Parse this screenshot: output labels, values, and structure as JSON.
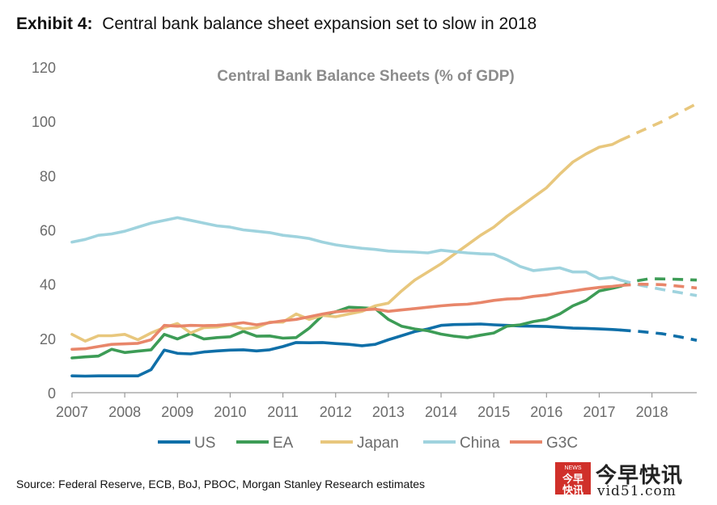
{
  "header": {
    "exhibit_label": "Exhibit 4:",
    "exhibit_title": "Central bank balance sheet expansion set to slow in 2018"
  },
  "footer": {
    "source": "Source: Federal Reserve, ECB, BoJ, PBOC, Morgan Stanley Research estimates"
  },
  "watermark": {
    "badge_top": "NEWS",
    "badge_line1": "今早",
    "badge_line2": "快讯",
    "chinese": "今早快讯",
    "url": "vid51.com"
  },
  "chart_data": {
    "type": "line",
    "title": "Central Bank Balance Sheets  (% of GDP)",
    "xlabel": "",
    "ylabel": "",
    "xlim": [
      2007,
      2018.85
    ],
    "ylim": [
      0,
      120
    ],
    "x_ticks": [
      2007,
      2008,
      2009,
      2010,
      2011,
      2012,
      2013,
      2014,
      2015,
      2016,
      2017,
      2018
    ],
    "x_tick_labels": [
      "2007",
      "2008",
      "2009",
      "2010",
      "2011",
      "2012",
      "2013",
      "2014",
      "2015",
      "2016",
      "2017",
      "2018"
    ],
    "y_ticks": [
      0,
      20,
      40,
      60,
      80,
      100,
      120
    ],
    "y_tick_labels": [
      "0",
      "20",
      "40",
      "60",
      "80",
      "100",
      "120"
    ],
    "grid": false,
    "legend_position": "bottom",
    "forecast_start": 2017.4,
    "series": [
      {
        "name": "US",
        "color": "#0f6fa8",
        "x": [
          2007,
          2007.25,
          2007.5,
          2007.75,
          2008,
          2008.25,
          2008.5,
          2008.75,
          2009,
          2009.25,
          2009.5,
          2009.75,
          2010,
          2010.25,
          2010.5,
          2010.75,
          2011,
          2011.25,
          2011.5,
          2011.75,
          2012,
          2012.25,
          2012.5,
          2012.75,
          2013,
          2013.25,
          2013.5,
          2013.75,
          2014,
          2014.25,
          2014.5,
          2014.75,
          2015,
          2015.25,
          2015.5,
          2015.75,
          2016,
          2016.25,
          2016.5,
          2016.75,
          2017,
          2017.25,
          2017.4
        ],
        "values": [
          6.2,
          6.1,
          6.2,
          6.2,
          6.2,
          6.2,
          8.5,
          15.7,
          14.5,
          14.3,
          15.0,
          15.4,
          15.7,
          15.8,
          15.4,
          15.8,
          17.0,
          18.5,
          18.4,
          18.5,
          18.1,
          17.8,
          17.3,
          17.8,
          19.5,
          21.0,
          22.5,
          23.5,
          24.8,
          25.1,
          25.2,
          25.3,
          25.0,
          24.8,
          24.6,
          24.5,
          24.4,
          24.1,
          23.8,
          23.7,
          23.5,
          23.3,
          23.1
        ],
        "forecast_x": [
          2017.4,
          2017.8,
          2018.2,
          2018.55,
          2018.85
        ],
        "forecast_values": [
          23.1,
          22.5,
          21.7,
          20.5,
          19.3
        ]
      },
      {
        "name": "EA",
        "color": "#3d9c56",
        "x": [
          2007,
          2007.25,
          2007.5,
          2007.75,
          2008,
          2008.25,
          2008.5,
          2008.75,
          2009,
          2009.25,
          2009.5,
          2009.75,
          2010,
          2010.25,
          2010.5,
          2010.75,
          2011,
          2011.25,
          2011.5,
          2011.75,
          2012,
          2012.25,
          2012.5,
          2012.75,
          2013,
          2013.25,
          2013.5,
          2013.75,
          2014,
          2014.25,
          2014.5,
          2014.75,
          2015,
          2015.25,
          2015.5,
          2015.75,
          2016,
          2016.25,
          2016.5,
          2016.75,
          2017,
          2017.25,
          2017.4
        ],
        "values": [
          12.8,
          13.2,
          13.5,
          16.0,
          14.8,
          15.3,
          15.8,
          21.5,
          19.8,
          21.8,
          19.8,
          20.3,
          20.6,
          22.6,
          20.8,
          20.9,
          20.1,
          20.3,
          23.8,
          28.5,
          29.8,
          31.5,
          31.3,
          31.0,
          27.0,
          24.5,
          23.5,
          22.8,
          21.6,
          20.8,
          20.3,
          21.2,
          22.0,
          24.5,
          25.0,
          26.2,
          27.0,
          29.0,
          32.0,
          34.0,
          37.5,
          38.5,
          39.2
        ],
        "forecast_x": [
          2017.4,
          2017.65,
          2017.95,
          2018.3,
          2018.6,
          2018.85
        ],
        "forecast_values": [
          39.2,
          41.0,
          42.0,
          41.9,
          41.7,
          41.5
        ]
      },
      {
        "name": "Japan",
        "color": "#e8c77d",
        "x": [
          2007,
          2007.25,
          2007.5,
          2007.75,
          2008,
          2008.25,
          2008.5,
          2008.75,
          2009,
          2009.25,
          2009.5,
          2009.75,
          2010,
          2010.25,
          2010.5,
          2010.75,
          2011,
          2011.25,
          2011.5,
          2011.75,
          2012,
          2012.25,
          2012.5,
          2012.75,
          2013,
          2013.25,
          2013.5,
          2013.75,
          2014,
          2014.25,
          2014.5,
          2014.75,
          2015,
          2015.25,
          2015.5,
          2015.75,
          2016,
          2016.25,
          2016.5,
          2016.75,
          2017,
          2017.25,
          2017.4
        ],
        "values": [
          21.5,
          19.0,
          21.0,
          21.0,
          21.5,
          19.5,
          22.0,
          24.0,
          25.5,
          22.0,
          24.0,
          24.2,
          25.0,
          23.5,
          24.0,
          26.0,
          26.0,
          29.0,
          27.0,
          28.5,
          28.0,
          29.0,
          30.0,
          32.0,
          33.0,
          37.5,
          41.5,
          44.5,
          47.5,
          51.0,
          54.5,
          58.0,
          61.0,
          65.0,
          68.5,
          72.0,
          75.5,
          80.5,
          85.0,
          88.0,
          90.5,
          91.5,
          93.0
        ],
        "forecast_x": [
          2017.4,
          2017.8,
          2018.2,
          2018.55,
          2018.85
        ],
        "forecast_values": [
          93.0,
          96.5,
          100.0,
          103.5,
          106.5
        ]
      },
      {
        "name": "China",
        "color": "#9fd3de",
        "x": [
          2007,
          2007.25,
          2007.5,
          2007.75,
          2008,
          2008.25,
          2008.5,
          2008.75,
          2009,
          2009.25,
          2009.5,
          2009.75,
          2010,
          2010.25,
          2010.5,
          2010.75,
          2011,
          2011.25,
          2011.5,
          2011.75,
          2012,
          2012.25,
          2012.5,
          2012.75,
          2013,
          2013.25,
          2013.5,
          2013.75,
          2014,
          2014.25,
          2014.5,
          2014.75,
          2015,
          2015.25,
          2015.5,
          2015.75,
          2016,
          2016.25,
          2016.5,
          2016.75,
          2017,
          2017.25,
          2017.4
        ],
        "values": [
          55.5,
          56.5,
          58.0,
          58.5,
          59.5,
          61.0,
          62.5,
          63.5,
          64.5,
          63.5,
          62.5,
          61.5,
          61.0,
          60.0,
          59.5,
          59.0,
          58.0,
          57.5,
          56.8,
          55.5,
          54.5,
          53.8,
          53.2,
          52.8,
          52.2,
          52.0,
          51.8,
          51.5,
          52.5,
          52.0,
          51.5,
          51.2,
          51.0,
          49.0,
          46.5,
          45.0,
          45.5,
          46.0,
          44.5,
          44.5,
          42.0,
          42.5,
          41.5
        ],
        "forecast_x": [
          2017.4,
          2017.8,
          2018.2,
          2018.55,
          2018.85
        ],
        "forecast_values": [
          41.5,
          39.5,
          38.0,
          36.8,
          35.8
        ]
      },
      {
        "name": "G3C",
        "color": "#e8866a",
        "x": [
          2007,
          2007.25,
          2007.5,
          2007.75,
          2008,
          2008.25,
          2008.5,
          2008.75,
          2009,
          2009.25,
          2009.5,
          2009.75,
          2010,
          2010.25,
          2010.5,
          2010.75,
          2011,
          2011.25,
          2011.5,
          2011.75,
          2012,
          2012.25,
          2012.5,
          2012.75,
          2013,
          2013.25,
          2013.5,
          2013.75,
          2014,
          2014.25,
          2014.5,
          2014.75,
          2015,
          2015.25,
          2015.5,
          2015.75,
          2016,
          2016.25,
          2016.5,
          2016.75,
          2017,
          2017.25,
          2017.4
        ],
        "values": [
          16.0,
          16.2,
          17.0,
          17.8,
          18.0,
          18.2,
          19.5,
          24.8,
          24.5,
          24.8,
          24.7,
          24.8,
          25.2,
          25.8,
          25.0,
          25.8,
          26.5,
          27.0,
          28.0,
          29.0,
          29.8,
          30.2,
          30.5,
          30.8,
          30.0,
          30.5,
          31.0,
          31.5,
          32.0,
          32.4,
          32.6,
          33.2,
          34.0,
          34.5,
          34.7,
          35.5,
          36.0,
          36.8,
          37.5,
          38.2,
          38.8,
          39.2,
          39.5
        ],
        "forecast_x": [
          2017.4,
          2017.8,
          2018.2,
          2018.55,
          2018.85
        ],
        "forecast_values": [
          39.5,
          40.0,
          39.8,
          39.2,
          38.6
        ]
      }
    ]
  }
}
